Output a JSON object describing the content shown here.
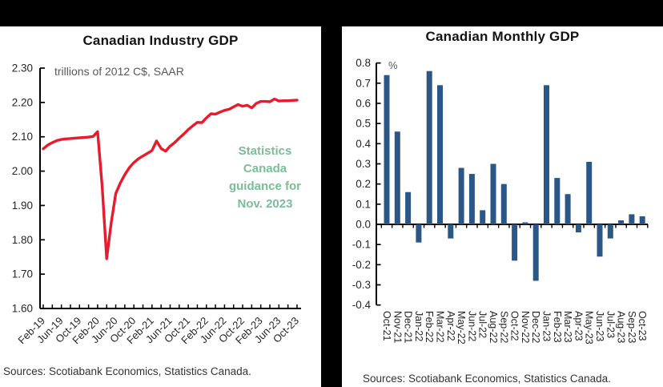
{
  "frame": {
    "top_bar_color": "#000000",
    "divider_color": "#000000",
    "background": "#ffffff"
  },
  "chart_data": [
    {
      "type": "line",
      "title": "Canadian Industry GDP",
      "unit_label": "trillions of 2012 C$, SAAR",
      "source": "Sources: Scotiabank Economics, Statistics Canada.",
      "annotation": {
        "lines": [
          "Statistics",
          "Canada",
          "guidance for",
          "Nov. 2023"
        ],
        "color": "#7abd98"
      },
      "colors": {
        "line": "#e81b2c",
        "axis": "#000000",
        "tick_text": "#262626",
        "muted_text": "#595959"
      },
      "ylim": [
        1.6,
        2.3
      ],
      "y_ticks": [
        "2.30",
        "2.20",
        "2.10",
        "2.00",
        "1.90",
        "1.80",
        "1.70",
        "1.60"
      ],
      "x_tick_labels": [
        "Feb-19",
        "Jun-19",
        "Oct-19",
        "Feb-20",
        "Jun-20",
        "Oct-20",
        "Feb-21",
        "Jun-21",
        "Oct-21",
        "Feb-22",
        "Jun-22",
        "Oct-22",
        "Feb-23",
        "Jun-23",
        "Oct-23"
      ],
      "months": [
        "Feb-19",
        "Mar-19",
        "Apr-19",
        "May-19",
        "Jun-19",
        "Jul-19",
        "Aug-19",
        "Sep-19",
        "Oct-19",
        "Nov-19",
        "Dec-19",
        "Jan-20",
        "Feb-20",
        "Mar-20",
        "Apr-20",
        "May-20",
        "Jun-20",
        "Jul-20",
        "Aug-20",
        "Sep-20",
        "Oct-20",
        "Nov-20",
        "Dec-20",
        "Jan-21",
        "Feb-21",
        "Mar-21",
        "Apr-21",
        "May-21",
        "Jun-21",
        "Jul-21",
        "Aug-21",
        "Sep-21",
        "Oct-21",
        "Nov-21",
        "Dec-21",
        "Jan-22",
        "Feb-22",
        "Mar-22",
        "Apr-22",
        "May-22",
        "Jun-22",
        "Jul-22",
        "Aug-22",
        "Sep-22",
        "Oct-22",
        "Nov-22",
        "Dec-22",
        "Jan-23",
        "Feb-23",
        "Mar-23",
        "Apr-23",
        "May-23",
        "Jun-23",
        "Jul-23",
        "Aug-23",
        "Sep-23",
        "Oct-23"
      ],
      "values": [
        2.065,
        2.076,
        2.083,
        2.089,
        2.092,
        2.094,
        2.095,
        2.096,
        2.097,
        2.098,
        2.099,
        2.101,
        2.115,
        1.955,
        1.745,
        1.85,
        1.935,
        1.965,
        1.99,
        2.01,
        2.025,
        2.036,
        2.044,
        2.052,
        2.06,
        2.088,
        2.066,
        2.058,
        2.073,
        2.083,
        2.096,
        2.108,
        2.121,
        2.132,
        2.142,
        2.141,
        2.155,
        2.167,
        2.166,
        2.172,
        2.177,
        2.18,
        2.187,
        2.194,
        2.189,
        2.192,
        2.184,
        2.197,
        2.203,
        2.203,
        2.202,
        2.21,
        2.204,
        2.205,
        2.205,
        2.206,
        2.207
      ]
    },
    {
      "type": "bar",
      "title": "Canadian Monthly GDP",
      "unit_label": "%",
      "source": "Sources: Scotiabank Economics, Statistics Canada.",
      "colors": {
        "bar": "#2b5786",
        "axis": "#000000",
        "tick_text": "#262626",
        "muted_text": "#595959"
      },
      "ylim": [
        -0.4,
        0.8
      ],
      "y_ticks": [
        "0.8",
        "0.7",
        "0.6",
        "0.5",
        "0.4",
        "0.3",
        "0.2",
        "0.1",
        "0.0",
        "-0.1",
        "-0.2",
        "-0.3",
        "-0.4"
      ],
      "categories": [
        "Oct-21",
        "Nov-21",
        "Dec-21",
        "Jan-22",
        "Feb-22",
        "Mar-22",
        "Apr-22",
        "May-22",
        "Jun-22",
        "Jul-22",
        "Aug-22",
        "Sep-22",
        "Oct-22",
        "Nov-22",
        "Dec-22",
        "Jan-23",
        "Feb-23",
        "Mar-23",
        "Apr-23",
        "May-23",
        "Jun-23",
        "Jul-23",
        "Aug-23",
        "Sep-23",
        "Oct-23"
      ],
      "values": [
        0.74,
        0.46,
        0.16,
        -0.09,
        0.76,
        0.69,
        -0.07,
        0.28,
        0.25,
        0.07,
        0.3,
        0.2,
        -0.18,
        0.01,
        -0.28,
        0.69,
        0.23,
        0.15,
        -0.04,
        0.31,
        -0.16,
        -0.07,
        0.02,
        0.05,
        0.04
      ]
    }
  ]
}
